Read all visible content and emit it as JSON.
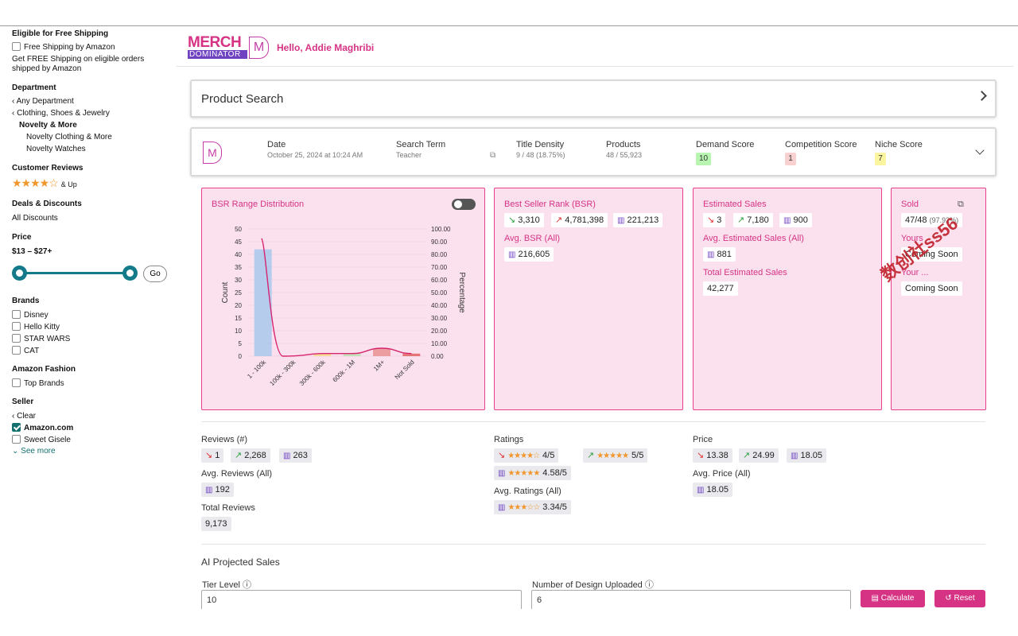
{
  "filters": {
    "free_shipping": {
      "heading": "Eligible for Free Shipping",
      "option": "Free Shipping by Amazon",
      "note_1": "Get FREE Shipping on eligible orders",
      "note_2": "shipped by Amazon"
    },
    "department": {
      "heading": "Department",
      "items": [
        "Any Department",
        "Clothing, Shoes & Jewelry",
        "Novelty & More",
        "Novelty Clothing & More",
        "Novelty Watches"
      ]
    },
    "reviews": {
      "heading": "Customer Reviews",
      "stars": "★★★★☆",
      "suffix": "& Up"
    },
    "deals": {
      "heading": "Deals & Discounts",
      "item": "All Discounts"
    },
    "price": {
      "heading": "Price",
      "range": "$13 – $27+",
      "go": "Go",
      "slider_min_pct": 0,
      "slider_max_pct": 100
    },
    "brands": {
      "heading": "Brands",
      "items": [
        "Disney",
        "Hello Kitty",
        "STAR WARS",
        "CAT"
      ]
    },
    "fashion": {
      "heading": "Amazon Fashion",
      "item": "Top Brands"
    },
    "seller": {
      "heading": "Seller",
      "clear": "Clear",
      "items": [
        "Amazon.com",
        "Sweet Gisele"
      ],
      "see_more": "See more"
    }
  },
  "header": {
    "logo_top": "MERCH",
    "logo_bottom": "DOMINATOR",
    "logo_mark": "M",
    "greeting": "Hello, Addie Maghribi"
  },
  "product_search": {
    "title": "Product Search"
  },
  "summary": {
    "date_label": "Date",
    "date_value": "October 25, 2024 at 10:24 AM",
    "term_label": "Search Term",
    "term_value": "Teacher",
    "density_label": "Title Density",
    "density_value": "9 / 48 (18.75%)",
    "products_label": "Products",
    "products_value": "48 / 55,923",
    "demand_label": "Demand Score",
    "demand_value": "10",
    "competition_label": "Competition Score",
    "competition_value": "1",
    "niche_label": "Niche Score",
    "niche_value": "7",
    "colors": {
      "demand": "#b7f5b0",
      "competition": "#f8d0d0",
      "niche": "#fbf5a0"
    }
  },
  "chart_data": {
    "type": "bar",
    "title": "BSR Range Distribution",
    "categories": [
      "1 - 100k",
      "100k - 300k",
      "300k - 600k",
      "600k - 1M",
      "1M+",
      "Not Sold"
    ],
    "series": [
      {
        "name": "Count",
        "values": [
          42,
          0,
          1,
          1,
          3,
          1
        ]
      }
    ],
    "line_percentage": [
      87.5,
      0,
      2.08,
      2.08,
      6.25,
      2.08
    ],
    "ylabel": "Count",
    "y2label": "Percentage",
    "yticks": [
      "50",
      "45",
      "40",
      "35",
      "30",
      "25",
      "20",
      "15",
      "10",
      "5",
      "0"
    ],
    "y2ticks": [
      "100.00",
      "90.00",
      "80.00",
      "70.00",
      "60.00",
      "50.00",
      "40.00",
      "30.00",
      "20.00",
      "10.00",
      "0.00"
    ],
    "ylim": [
      0,
      50
    ],
    "y2lim": [
      0,
      100
    ],
    "colors": [
      "#a8c8ec",
      "#f5c89a",
      "#f5d98a",
      "#b9e0b0",
      "#e89090",
      "#e06060"
    ],
    "line_color": "#d6246e"
  },
  "bsr": {
    "title": "Best Seller Rank (BSR)",
    "low": "3,310",
    "high": "4,781,398",
    "avg_small": "221,213",
    "avg_label": "Avg. BSR (All)",
    "avg_all": "216,605"
  },
  "sales": {
    "title": "Estimated Sales",
    "low": "3",
    "high": "7,180",
    "avg_small": "900",
    "avg_label": "Avg. Estimated Sales (All)",
    "avg_all": "881",
    "total_label": "Total Estimated Sales",
    "total": "42,277"
  },
  "sold": {
    "title": "Sold",
    "value": "47/48",
    "pct": "(97.92%)",
    "yours_label": "Yours",
    "yours_value": "Coming Soon",
    "yours2_label": "Your ...",
    "yours2_value": "Coming Soon"
  },
  "reviews_stats": {
    "label": "Reviews (#)",
    "low": "1",
    "high": "2,268",
    "avg_small": "263",
    "avg_label": "Avg. Reviews (All)",
    "avg_all": "192",
    "total_label": "Total Reviews",
    "total": "9,173"
  },
  "ratings": {
    "label": "Ratings",
    "low_stars": "★★★★☆",
    "low": "4/5",
    "high_stars": "★★★★★",
    "high": "5/5",
    "avg_stars": "★★★★★",
    "avg_small": "4.58/5",
    "avg_label": "Avg. Ratings (All)",
    "avg_all_stars": "★★★☆☆",
    "avg_all": "3.34/5"
  },
  "price_stats": {
    "label": "Price",
    "low": "13.38",
    "high": "24.99",
    "avg_small": "18.05",
    "avg_label": "Avg. Price (All)",
    "avg_all": "18.05"
  },
  "ai": {
    "title": "AI Projected Sales",
    "tier_label": "Tier Level ⓘ",
    "tier_value": "10",
    "designs_label": "Number of Design Uploaded ⓘ",
    "designs_value": "6",
    "calculate": "Calculate",
    "reset": "Reset"
  },
  "watermark": "数创社ss56"
}
